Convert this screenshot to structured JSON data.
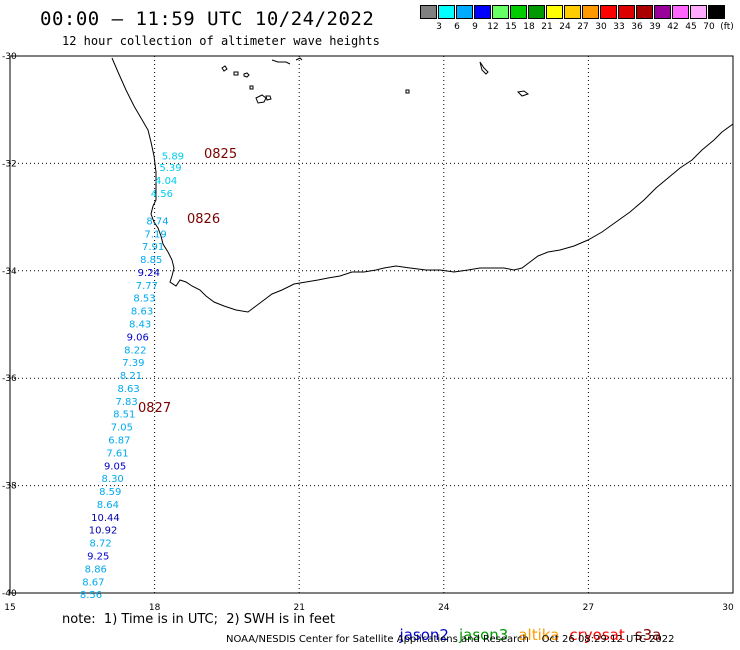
{
  "header": {
    "title": "00:00 – 11:59 UTC 10/24/2022",
    "subtitle": "12 hour collection of altimeter wave heights"
  },
  "colorbar": {
    "colors": [
      "#808080",
      "#00ffff",
      "#00aaff",
      "#0000ff",
      "#66ff66",
      "#00cc00",
      "#009900",
      "#ffff00",
      "#ffcc00",
      "#ff9900",
      "#ff0000",
      "#dd0000",
      "#aa0000",
      "#990099",
      "#ff66ff",
      "#ffaaff",
      "#000000"
    ],
    "labels": [
      "3",
      "6",
      "9",
      "12",
      "15",
      "18",
      "21",
      "24",
      "27",
      "30",
      "33",
      "36",
      "39",
      "42",
      "45",
      "70",
      "(ft)"
    ]
  },
  "axes": {
    "lat_labels": [
      "-30",
      "-32",
      "-34",
      "-36",
      "-38",
      "-40"
    ],
    "lon_labels": [
      "15",
      "18",
      "21",
      "24",
      "27",
      "30"
    ]
  },
  "passes": [
    "0825",
    "0826",
    "0827"
  ],
  "swh_points": [
    {
      "v": "5.89",
      "lon": 18.38,
      "lat": -31.87,
      "c": "#00ccee"
    },
    {
      "v": "5.39",
      "lon": 18.33,
      "lat": -32.09,
      "c": "#00ccee"
    },
    {
      "v": "4.04",
      "lon": 18.24,
      "lat": -32.33,
      "c": "#00ccee"
    },
    {
      "v": "4.56",
      "lon": 18.15,
      "lat": -32.57,
      "c": "#00ccee"
    },
    {
      "v": "8.74",
      "lon": 18.06,
      "lat": -33.08,
      "c": "#00aaee"
    },
    {
      "v": "7.19",
      "lon": 18.02,
      "lat": -33.32,
      "c": "#00aaee"
    },
    {
      "v": "7.91",
      "lon": 17.97,
      "lat": -33.56,
      "c": "#00aaee"
    },
    {
      "v": "8.85",
      "lon": 17.93,
      "lat": -33.8,
      "c": "#00aaee"
    },
    {
      "v": "9.24",
      "lon": 17.88,
      "lat": -34.04,
      "c": "#0000cc"
    },
    {
      "v": "7.77",
      "lon": 17.84,
      "lat": -34.28,
      "c": "#00aaee"
    },
    {
      "v": "8.53",
      "lon": 17.79,
      "lat": -34.52,
      "c": "#00aaee"
    },
    {
      "v": "8.63",
      "lon": 17.74,
      "lat": -34.76,
      "c": "#00aaee"
    },
    {
      "v": "8.43",
      "lon": 17.7,
      "lat": -35.0,
      "c": "#00aaee"
    },
    {
      "v": "9.06",
      "lon": 17.65,
      "lat": -35.24,
      "c": "#0000cc"
    },
    {
      "v": "8.22",
      "lon": 17.6,
      "lat": -35.48,
      "c": "#00aaee"
    },
    {
      "v": "7.39",
      "lon": 17.56,
      "lat": -35.72,
      "c": "#00aaee"
    },
    {
      "v": "8.21",
      "lon": 17.51,
      "lat": -35.96,
      "c": "#00aaee"
    },
    {
      "v": "8.63",
      "lon": 17.46,
      "lat": -36.2,
      "c": "#00aaee"
    },
    {
      "v": "7.83",
      "lon": 17.42,
      "lat": -36.44,
      "c": "#00aaee"
    },
    {
      "v": "8.51",
      "lon": 17.37,
      "lat": -36.68,
      "c": "#00aaee"
    },
    {
      "v": "7.05",
      "lon": 17.32,
      "lat": -36.92,
      "c": "#00aaee"
    },
    {
      "v": "6.87",
      "lon": 17.27,
      "lat": -37.16,
      "c": "#00aaee"
    },
    {
      "v": "7.61",
      "lon": 17.23,
      "lat": -37.4,
      "c": "#00aaee"
    },
    {
      "v": "9.05",
      "lon": 17.18,
      "lat": -37.64,
      "c": "#0000cc"
    },
    {
      "v": "8.30",
      "lon": 17.13,
      "lat": -37.88,
      "c": "#00aaee"
    },
    {
      "v": "8.59",
      "lon": 17.08,
      "lat": -38.12,
      "c": "#00aaee"
    },
    {
      "v": "8.64",
      "lon": 17.03,
      "lat": -38.36,
      "c": "#00aaee"
    },
    {
      "v": "10.44",
      "lon": 16.98,
      "lat": -38.6,
      "c": "#0000aa"
    },
    {
      "v": "10.92",
      "lon": 16.93,
      "lat": -38.84,
      "c": "#0000aa"
    },
    {
      "v": "8.72",
      "lon": 16.88,
      "lat": -39.08,
      "c": "#00aaee"
    },
    {
      "v": "9.25",
      "lon": 16.83,
      "lat": -39.32,
      "c": "#0000cc"
    },
    {
      "v": "8.86",
      "lon": 16.78,
      "lat": -39.56,
      "c": "#00aaee"
    },
    {
      "v": "8.67",
      "lon": 16.73,
      "lat": -39.8,
      "c": "#00aaee"
    },
    {
      "v": "8.56",
      "lon": 16.68,
      "lat": -40.04,
      "c": "#00aaee"
    }
  ],
  "note": "note:  1) Time is in UTC;  2) SWH is in feet",
  "legend": [
    {
      "label": "jason2",
      "color": "#0000cc"
    },
    {
      "label": "jason3",
      "color": "#009900"
    },
    {
      "label": "altika",
      "color": "#ff9900"
    },
    {
      "label": "cryosat",
      "color": "#ff0000"
    },
    {
      "label": "s3a",
      "color": "#880000"
    }
  ],
  "credit": "NOAA/NESDIS Center for Satellite Applications and Research    Oct 26 08:29:12 UTC 2022"
}
